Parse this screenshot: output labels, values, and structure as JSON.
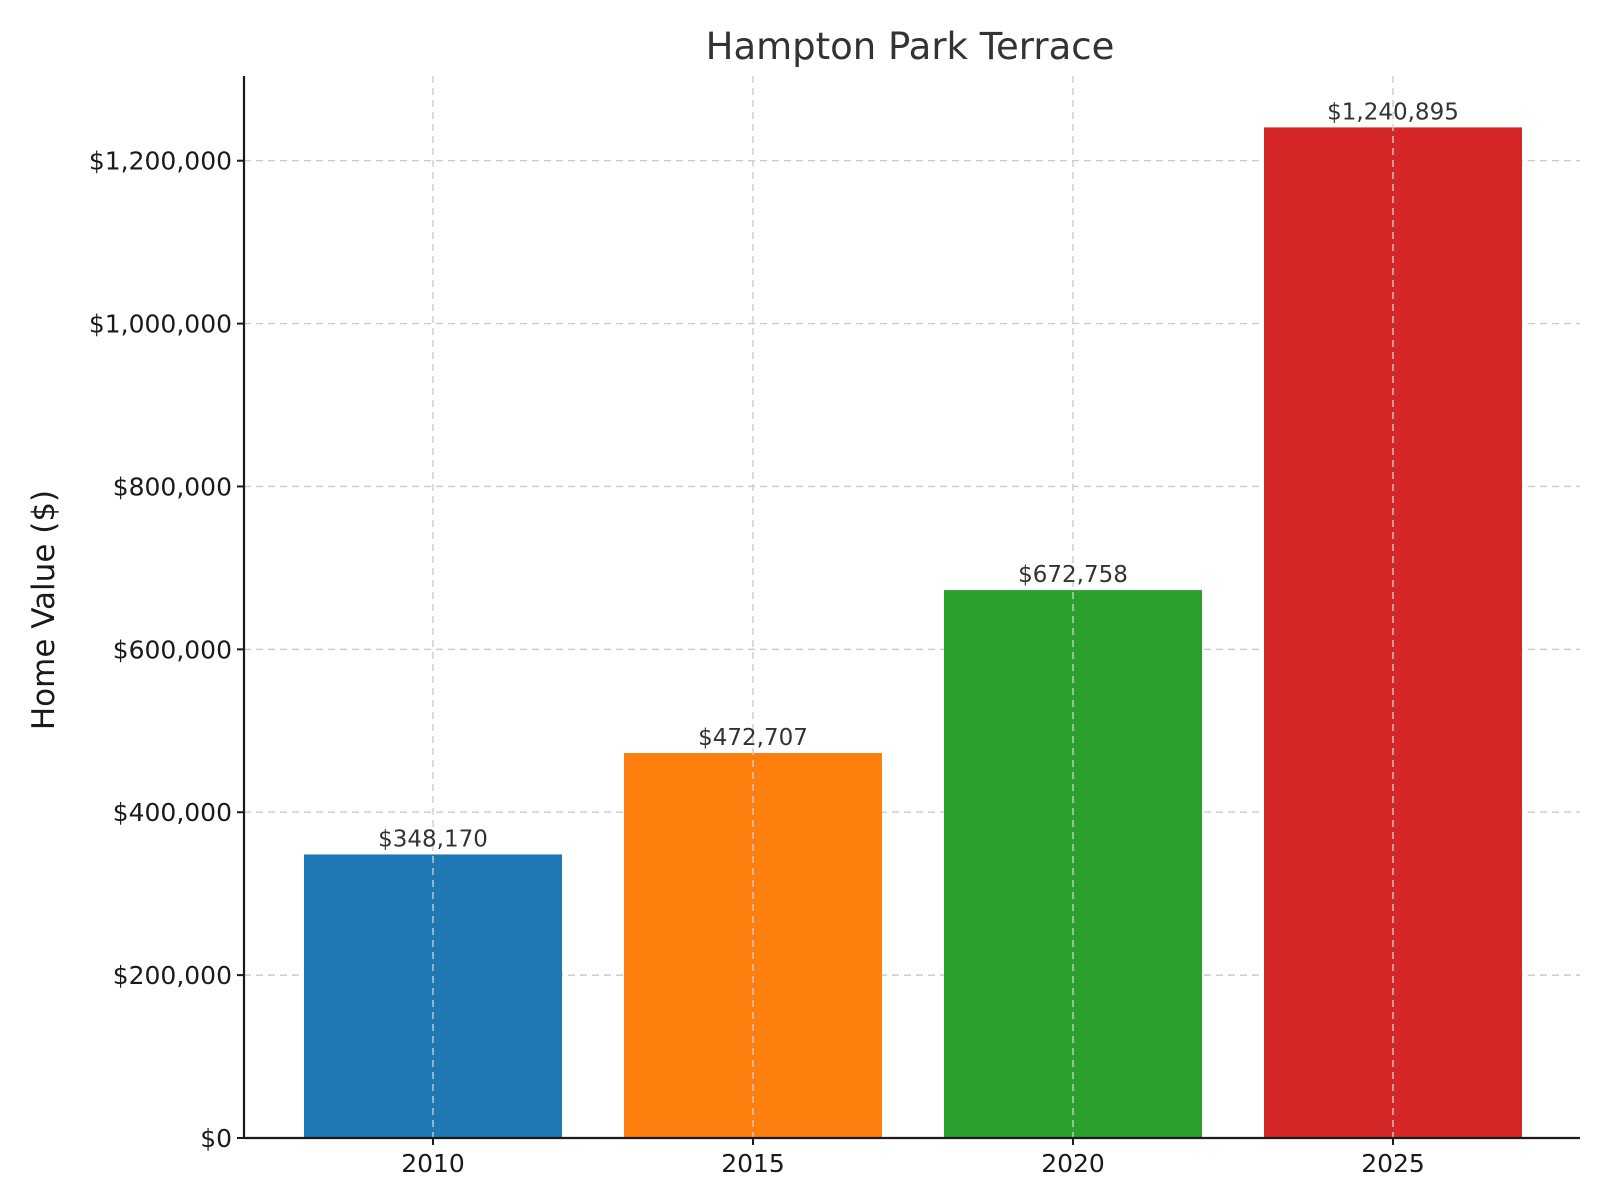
{
  "chart_data": {
    "type": "bar",
    "title": "Hampton Park Terrace",
    "xlabel": "",
    "ylabel": "Home Value ($)",
    "categories": [
      "2010",
      "2015",
      "2020",
      "2025"
    ],
    "values": [
      348170,
      472707,
      672758,
      1240895
    ],
    "value_labels": [
      "$348,170",
      "$472,707",
      "$672,758",
      "$1,240,895"
    ],
    "colors": [
      "#1f77b4",
      "#ff7f0e",
      "#2ca02c",
      "#d62728"
    ],
    "ylim": [
      0,
      1304000
    ],
    "yticks": [
      0,
      200000,
      400000,
      600000,
      800000,
      1000000,
      1200000
    ],
    "ytick_labels": [
      "$0",
      "$200,000",
      "$400,000",
      "$600,000",
      "$800,000",
      "$1,000,000",
      "$1,200,000"
    ],
    "grid": true,
    "legend": "none"
  }
}
